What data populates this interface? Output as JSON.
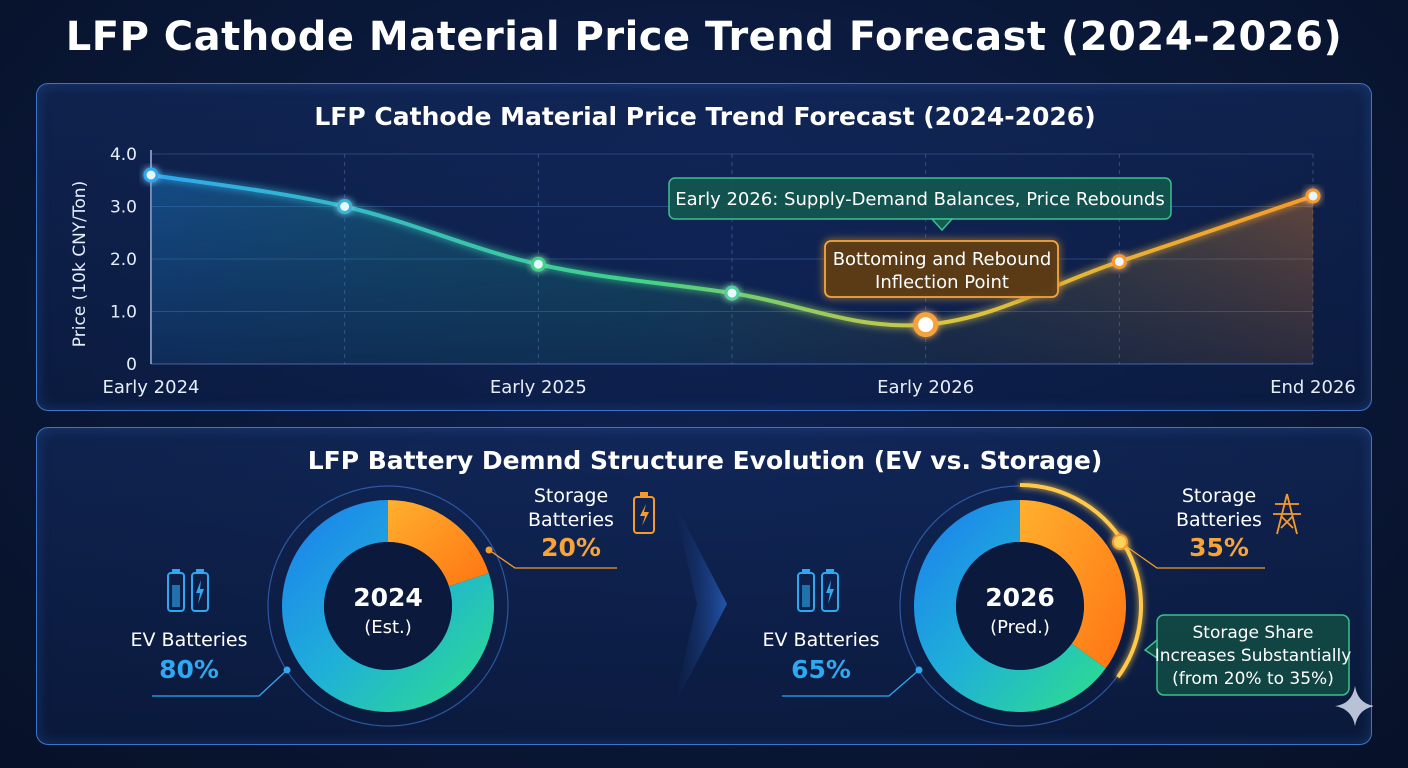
{
  "main_title": "LFP Cathode Material Price Trend Forecast (2024-2026)",
  "colors": {
    "accent_blue": "#2ea8f0",
    "accent_green": "#3ed488",
    "accent_orange": "#f79a2a",
    "callout_green": "#2e9c6e"
  },
  "chart_data": [
    {
      "type": "line",
      "title": "LFP Cathode Material Price Trend Forecast (2024-2026)",
      "ylabel": "Price (10k CNY/Ton)",
      "xlabel": "",
      "ylim": [
        0,
        4
      ],
      "yticks": [
        0,
        1,
        2,
        3,
        4
      ],
      "ytick_labels": [
        "0",
        "1.0",
        "2.0",
        "3.0",
        "4.0"
      ],
      "grid": true,
      "x": [
        0,
        1,
        2,
        3,
        4,
        5,
        6
      ],
      "xtick_labels": [
        "Early 2024",
        "",
        "Early 2025",
        "",
        "Early 2026",
        "",
        "End 2026"
      ],
      "xlim": [
        0,
        6
      ],
      "series": [
        {
          "values": [
            3.6,
            3.0,
            1.9,
            1.35,
            0.75,
            1.95,
            3.2
          ]
        }
      ],
      "annotations": {
        "rebound": "Early 2026: Supply-Demand Balances, Price Rebounds",
        "inflection_line1": "Bottoming and Rebound",
        "inflection_line2": "Inflection Point"
      }
    },
    {
      "type": "pie",
      "title": "LFP Battery Demnd Structure Evolution (EV vs. Storage)",
      "charts": [
        {
          "center_line1": "2024",
          "center_line2": "(Est.)",
          "slices": [
            {
              "label": "EV Batteries",
              "value": 80,
              "value_label": "80%"
            },
            {
              "label_line1": "Storage",
              "label_line2": "Batteries",
              "value": 20,
              "value_label": "20%"
            }
          ]
        },
        {
          "center_line1": "2026",
          "center_line2": "(Pred.)",
          "slices": [
            {
              "label": "EV Batteries",
              "value": 65,
              "value_label": "65%"
            },
            {
              "label_line1": "Storage",
              "label_line2": "Batteries",
              "value": 35,
              "value_label": "35%"
            }
          ],
          "callout": [
            "Storage Share",
            "Increases Substantially",
            "(from 20% to 35%)"
          ]
        }
      ]
    }
  ]
}
